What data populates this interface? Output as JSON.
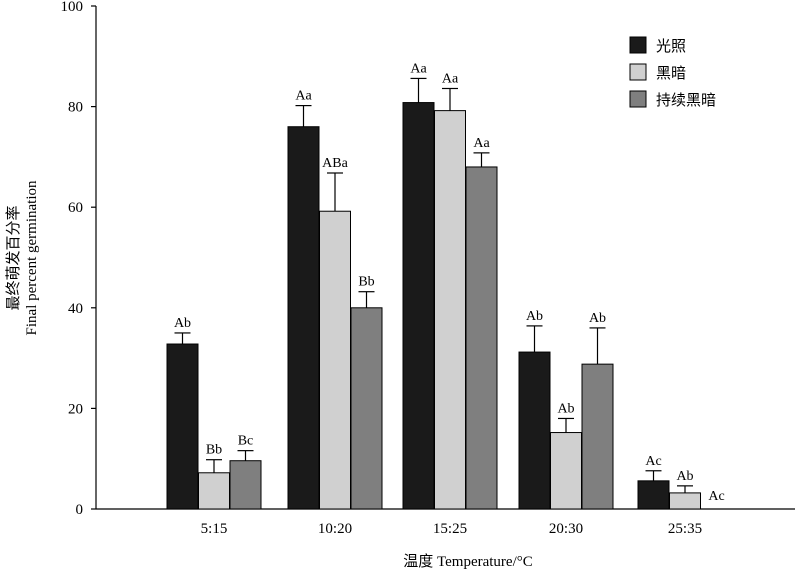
{
  "chart_data": {
    "type": "bar",
    "categories": [
      "5:15",
      "10:20",
      "15:25",
      "20:30",
      "25:35"
    ],
    "series": [
      {
        "name": "光照",
        "color": "#1a1a1a",
        "values": [
          32.8,
          76.0,
          80.8,
          31.2,
          5.6
        ],
        "errors": [
          2.2,
          4.2,
          4.8,
          5.2,
          2.0
        ],
        "labels": [
          "Ab",
          "Aa",
          "Aa",
          "Ab",
          "Ac"
        ]
      },
      {
        "name": "黑暗",
        "color": "#d0d0d0",
        "values": [
          7.2,
          59.2,
          79.2,
          15.2,
          3.2
        ],
        "errors": [
          2.6,
          7.6,
          4.4,
          2.8,
          1.4
        ],
        "labels": [
          "Bb",
          "ABa",
          "Aa",
          "Ab",
          "Ab"
        ]
      },
      {
        "name": "持续黑暗",
        "color": "#7f7f7f",
        "values": [
          9.6,
          40.0,
          68.0,
          28.8,
          0
        ],
        "errors": [
          2.0,
          3.2,
          2.8,
          7.2,
          0
        ],
        "labels": [
          "Bc",
          "Bb",
          "Aa",
          "Ab",
          "Ac"
        ]
      }
    ],
    "yticks": [
      0,
      20,
      40,
      60,
      80,
      100
    ],
    "ylim": [
      0,
      100
    ],
    "ylabel_cn": "最终萌发百分率",
    "ylabel_en": "Final percent germination",
    "xlabel": "温度 Temperature/°C",
    "legend_position": "top-right",
    "grid": false
  }
}
